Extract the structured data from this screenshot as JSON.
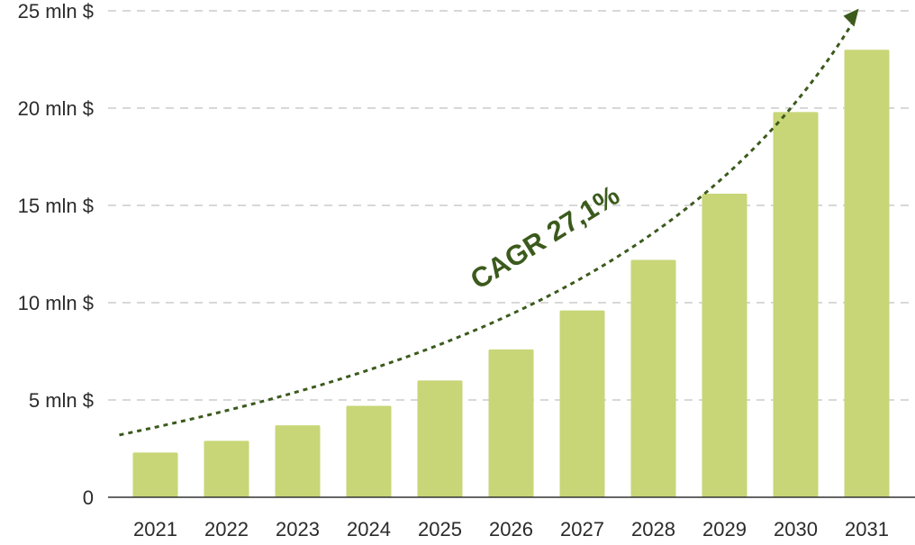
{
  "chart_data": {
    "type": "bar",
    "categories": [
      "2021",
      "2022",
      "2023",
      "2024",
      "2025",
      "2026",
      "2027",
      "2028",
      "2029",
      "2030",
      "2031"
    ],
    "values": [
      2.3,
      2.9,
      3.7,
      4.7,
      6.0,
      7.6,
      9.6,
      12.2,
      15.6,
      19.8,
      23.0
    ],
    "ylim": [
      0,
      25
    ],
    "yticks": [
      0,
      5,
      10,
      15,
      20,
      25
    ],
    "ytick_labels": [
      "0",
      "5 mln $",
      "10 mln $",
      "15 mln $",
      "20 mln $",
      "25 mln $"
    ],
    "grid": true,
    "annotation": {
      "text": "CAGR 27,1%",
      "trend_start_value": 3.2,
      "trend_end_value": 24.6
    },
    "colors": {
      "bar": "#c8d677",
      "trend": "#3b5a1c",
      "grid": "#cccccc",
      "axis": "#333333"
    }
  }
}
